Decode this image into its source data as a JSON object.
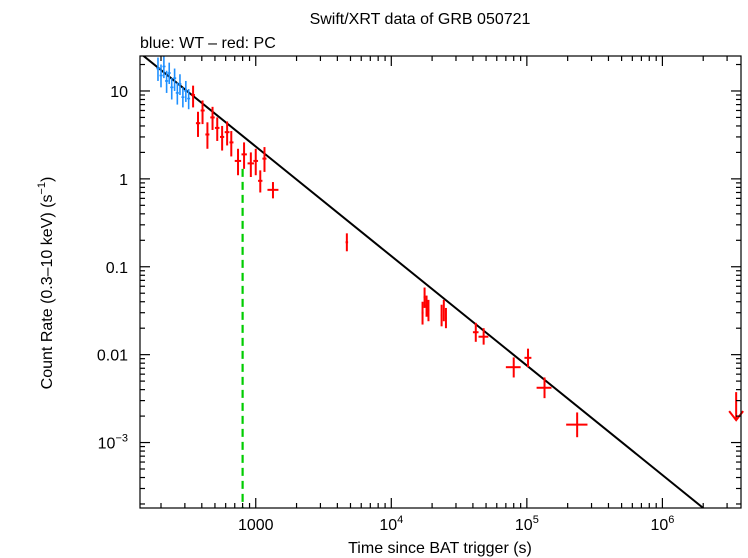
{
  "chart_data": {
    "type": "scatter",
    "title": "Swift/XRT data of GRB 050721",
    "subtitle": "blue: WT – red: PC",
    "xlabel": "Time since BAT trigger (s)",
    "ylabel_main": "Count Rate (0.3–10 keV) (s",
    "ylabel_exp": "−1",
    "ylabel_close": ")",
    "xscale": "log",
    "yscale": "log",
    "xlim": [
      140,
      3800000
    ],
    "ylim": [
      0.00018,
      25
    ],
    "x_ticks": [
      {
        "value": 1000,
        "label": "1000",
        "base": "",
        "exp": ""
      },
      {
        "value": 10000,
        "label": "",
        "base": "10",
        "exp": "4"
      },
      {
        "value": 100000,
        "label": "",
        "base": "10",
        "exp": "5"
      },
      {
        "value": 1000000,
        "label": "",
        "base": "10",
        "exp": "6"
      }
    ],
    "y_ticks": [
      {
        "value": 10,
        "label": "10",
        "base": "",
        "exp": ""
      },
      {
        "value": 1,
        "label": "1",
        "base": "",
        "exp": ""
      },
      {
        "value": 0.1,
        "label": "0.1",
        "base": "",
        "exp": ""
      },
      {
        "value": 0.01,
        "label": "0.01",
        "base": "",
        "exp": ""
      },
      {
        "value": 0.001,
        "label": "",
        "base": "10",
        "exp": "−3"
      }
    ],
    "colors": {
      "wt": "#1e90ff",
      "pc": "#ff0000",
      "model": "#000000",
      "break": "#00cc00",
      "axis": "#000000"
    },
    "series": [
      {
        "name": "WT",
        "mode": "WT",
        "points": [
          {
            "x": 190,
            "y": 18,
            "xlo": 185,
            "xhi": 196,
            "ylo": 13,
            "yhi": 24
          },
          {
            "x": 200,
            "y": 15,
            "xlo": 195,
            "xhi": 206,
            "ylo": 11,
            "yhi": 20
          },
          {
            "x": 210,
            "y": 19,
            "xlo": 205,
            "xhi": 216,
            "ylo": 14,
            "yhi": 25
          },
          {
            "x": 220,
            "y": 13,
            "xlo": 214,
            "xhi": 226,
            "ylo": 9.5,
            "yhi": 17
          },
          {
            "x": 230,
            "y": 16,
            "xlo": 224,
            "xhi": 236,
            "ylo": 12,
            "yhi": 21
          },
          {
            "x": 240,
            "y": 11,
            "xlo": 234,
            "xhi": 247,
            "ylo": 8,
            "yhi": 14
          },
          {
            "x": 252,
            "y": 14,
            "xlo": 246,
            "xhi": 259,
            "ylo": 10,
            "yhi": 18
          },
          {
            "x": 264,
            "y": 9.5,
            "xlo": 257,
            "xhi": 271,
            "ylo": 7,
            "yhi": 12.5
          },
          {
            "x": 276,
            "y": 12,
            "xlo": 269,
            "xhi": 283,
            "ylo": 9,
            "yhi": 15.5
          },
          {
            "x": 290,
            "y": 8.5,
            "xlo": 283,
            "xhi": 298,
            "ylo": 6.5,
            "yhi": 11
          },
          {
            "x": 305,
            "y": 10,
            "xlo": 297,
            "xhi": 313,
            "ylo": 7.5,
            "yhi": 13
          },
          {
            "x": 320,
            "y": 8.2,
            "xlo": 312,
            "xhi": 328,
            "ylo": 6.2,
            "yhi": 10.5
          }
        ]
      },
      {
        "name": "PC",
        "mode": "PC",
        "points": [
          {
            "x": 345,
            "y": 9.0,
            "xlo": 335,
            "xhi": 356,
            "ylo": 6.5,
            "yhi": 11.5
          },
          {
            "x": 375,
            "y": 4.3,
            "xlo": 362,
            "xhi": 390,
            "ylo": 3.0,
            "yhi": 5.8
          },
          {
            "x": 405,
            "y": 6.0,
            "xlo": 392,
            "xhi": 420,
            "ylo": 4.2,
            "yhi": 7.8
          },
          {
            "x": 440,
            "y": 3.2,
            "xlo": 425,
            "xhi": 455,
            "ylo": 2.2,
            "yhi": 4.4
          },
          {
            "x": 480,
            "y": 5.0,
            "xlo": 462,
            "xhi": 498,
            "ylo": 3.6,
            "yhi": 6.6
          },
          {
            "x": 520,
            "y": 3.8,
            "xlo": 500,
            "xhi": 540,
            "ylo": 2.7,
            "yhi": 5.0
          },
          {
            "x": 565,
            "y": 3.0,
            "xlo": 545,
            "xhi": 585,
            "ylo": 2.1,
            "yhi": 4.0
          },
          {
            "x": 615,
            "y": 3.4,
            "xlo": 590,
            "xhi": 640,
            "ylo": 2.4,
            "yhi": 4.5
          },
          {
            "x": 660,
            "y": 2.6,
            "xlo": 640,
            "xhi": 685,
            "ylo": 1.8,
            "yhi": 3.5
          },
          {
            "x": 740,
            "y": 1.6,
            "xlo": 700,
            "xhi": 780,
            "ylo": 1.1,
            "yhi": 2.2
          },
          {
            "x": 820,
            "y": 1.9,
            "xlo": 785,
            "xhi": 860,
            "ylo": 1.3,
            "yhi": 2.6
          },
          {
            "x": 920,
            "y": 1.5,
            "xlo": 870,
            "xhi": 970,
            "ylo": 1.05,
            "yhi": 2.0
          },
          {
            "x": 1000,
            "y": 1.6,
            "xlo": 960,
            "xhi": 1040,
            "ylo": 1.1,
            "yhi": 2.2
          },
          {
            "x": 1080,
            "y": 0.95,
            "xlo": 1040,
            "xhi": 1120,
            "ylo": 0.7,
            "yhi": 1.25
          },
          {
            "x": 1160,
            "y": 1.7,
            "xlo": 1120,
            "xhi": 1200,
            "ylo": 1.2,
            "yhi": 2.3
          },
          {
            "x": 1340,
            "y": 0.75,
            "xlo": 1220,
            "xhi": 1470,
            "ylo": 0.6,
            "yhi": 0.92
          },
          {
            "x": 4700,
            "y": 0.19,
            "xlo": 4600,
            "xhi": 4800,
            "ylo": 0.15,
            "yhi": 0.24
          },
          {
            "x": 17000,
            "y": 0.03,
            "xlo": 16700,
            "xhi": 17300,
            "ylo": 0.022,
            "yhi": 0.04
          },
          {
            "x": 17600,
            "y": 0.045,
            "xlo": 17300,
            "xhi": 17900,
            "ylo": 0.034,
            "yhi": 0.058
          },
          {
            "x": 18200,
            "y": 0.036,
            "xlo": 17900,
            "xhi": 18500,
            "ylo": 0.027,
            "yhi": 0.047
          },
          {
            "x": 18800,
            "y": 0.032,
            "xlo": 18500,
            "xhi": 19100,
            "ylo": 0.024,
            "yhi": 0.042
          },
          {
            "x": 23500,
            "y": 0.028,
            "xlo": 23200,
            "xhi": 23800,
            "ylo": 0.021,
            "yhi": 0.037
          },
          {
            "x": 24400,
            "y": 0.032,
            "xlo": 24100,
            "xhi": 24700,
            "ylo": 0.024,
            "yhi": 0.042
          },
          {
            "x": 25300,
            "y": 0.026,
            "xlo": 25000,
            "xhi": 25600,
            "ylo": 0.02,
            "yhi": 0.034
          },
          {
            "x": 42000,
            "y": 0.018,
            "xlo": 40000,
            "xhi": 44000,
            "ylo": 0.014,
            "yhi": 0.023
          },
          {
            "x": 48000,
            "y": 0.016,
            "xlo": 44000,
            "xhi": 52000,
            "ylo": 0.013,
            "yhi": 0.02
          },
          {
            "x": 80000,
            "y": 0.0072,
            "xlo": 70000,
            "xhi": 90000,
            "ylo": 0.0055,
            "yhi": 0.0093
          },
          {
            "x": 102000,
            "y": 0.0092,
            "xlo": 96000,
            "xhi": 108000,
            "ylo": 0.0072,
            "yhi": 0.0117
          },
          {
            "x": 135000,
            "y": 0.0042,
            "xlo": 118000,
            "xhi": 152000,
            "ylo": 0.0032,
            "yhi": 0.0055
          },
          {
            "x": 235000,
            "y": 0.0016,
            "xlo": 195000,
            "xhi": 280000,
            "ylo": 0.00115,
            "yhi": 0.0022
          }
        ]
      }
    ],
    "upper_limits": [
      {
        "x": 3500000,
        "y": 0.0018,
        "color": "pc"
      }
    ],
    "model_line": {
      "x": [
        140,
        2000000
      ],
      "y": [
        27,
        0.00018
      ]
    },
    "break_line": {
      "x": 800,
      "y_top": 1.3,
      "y_bottom": 0.00018
    }
  }
}
